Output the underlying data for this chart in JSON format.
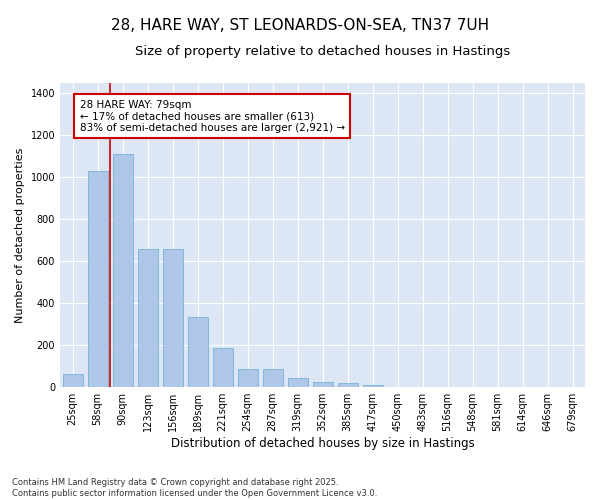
{
  "title": "28, HARE WAY, ST LEONARDS-ON-SEA, TN37 7UH",
  "subtitle": "Size of property relative to detached houses in Hastings",
  "xlabel": "Distribution of detached houses by size in Hastings",
  "ylabel": "Number of detached properties",
  "categories": [
    "25sqm",
    "58sqm",
    "90sqm",
    "123sqm",
    "156sqm",
    "189sqm",
    "221sqm",
    "254sqm",
    "287sqm",
    "319sqm",
    "352sqm",
    "385sqm",
    "417sqm",
    "450sqm",
    "483sqm",
    "516sqm",
    "548sqm",
    "581sqm",
    "614sqm",
    "646sqm",
    "679sqm"
  ],
  "values": [
    62,
    1030,
    1110,
    660,
    660,
    335,
    185,
    85,
    85,
    45,
    27,
    22,
    10,
    0,
    0,
    0,
    0,
    0,
    0,
    0,
    0
  ],
  "bar_color": "#aec6e8",
  "bar_edge_color": "#6aaad4",
  "vline_color": "#cc0000",
  "vline_x": 1.5,
  "annotation_box_text": "28 HARE WAY: 79sqm\n← 17% of detached houses are smaller (613)\n83% of semi-detached houses are larger (2,921) →",
  "annotation_box_color": "#cc0000",
  "annotation_box_facecolor": "white",
  "ylim": [
    0,
    1450
  ],
  "background_color": "#dce6f5",
  "footer_text": "Contains HM Land Registry data © Crown copyright and database right 2025.\nContains public sector information licensed under the Open Government Licence v3.0.",
  "title_fontsize": 11,
  "subtitle_fontsize": 9.5,
  "xlabel_fontsize": 8.5,
  "ylabel_fontsize": 8,
  "tick_fontsize": 7,
  "annotation_fontsize": 7.5,
  "footer_fontsize": 6
}
